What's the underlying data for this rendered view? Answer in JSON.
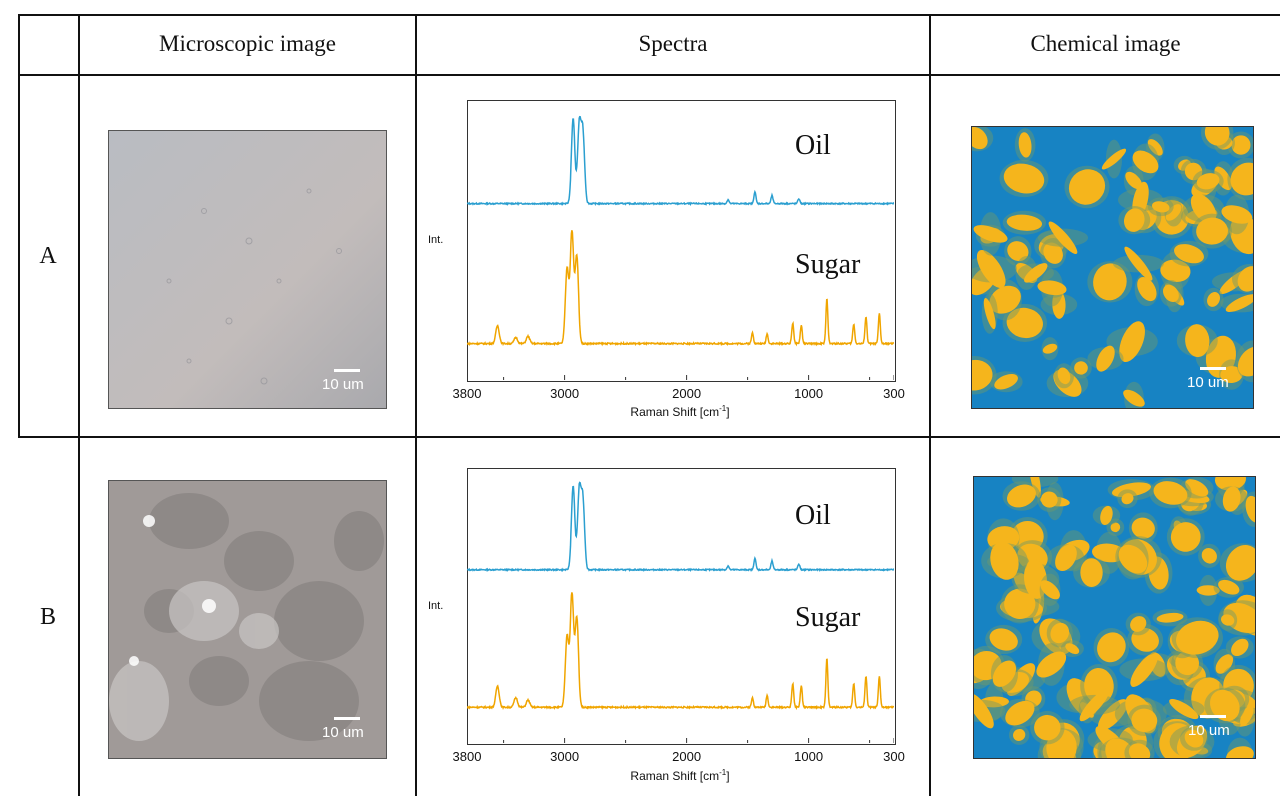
{
  "table": {
    "headers": {
      "microscopic": "Microscopic image",
      "spectra": "Spectra",
      "chemical": "Chemical image"
    },
    "rows": [
      {
        "label": "A",
        "scale_bar": "10 um"
      },
      {
        "label": "B",
        "scale_bar": "10 um"
      }
    ]
  },
  "colors": {
    "oil": "#2b9fd0",
    "sugar": "#f0a500",
    "chem_background": "#1783c3",
    "chem_particle": "#f5b51c"
  },
  "chart_data": [
    {
      "type": "line",
      "panel": "A",
      "ylabel": "Int.",
      "xlabel": "Raman Shift [cm-1]",
      "xlim": [
        3800,
        300
      ],
      "x_ticks": [
        3800,
        3000,
        2000,
        1000,
        300
      ],
      "series": [
        {
          "name": "Oil",
          "color": "#2b9fd0",
          "peaks": [
            [
              2930,
              0.85
            ],
            [
              2880,
              0.78
            ],
            [
              2850,
              0.7
            ],
            [
              1440,
              0.12
            ],
            [
              1300,
              0.08
            ],
            [
              1660,
              0.04
            ],
            [
              1080,
              0.05
            ]
          ]
        },
        {
          "name": "Sugar",
          "color": "#f0a500",
          "peaks": [
            [
              3550,
              0.15
            ],
            [
              3400,
              0.05
            ],
            [
              3300,
              0.06
            ],
            [
              2980,
              0.62
            ],
            [
              2940,
              0.92
            ],
            [
              2900,
              0.72
            ],
            [
              1460,
              0.09
            ],
            [
              1340,
              0.08
            ],
            [
              1130,
              0.17
            ],
            [
              1060,
              0.15
            ],
            [
              850,
              0.38
            ],
            [
              630,
              0.16
            ],
            [
              530,
              0.22
            ],
            [
              420,
              0.25
            ]
          ]
        }
      ]
    },
    {
      "type": "line",
      "panel": "B",
      "ylabel": "Int.",
      "xlabel": "Raman Shift [cm-1]",
      "xlim": [
        3800,
        300
      ],
      "x_ticks": [
        3800,
        3000,
        2000,
        1000,
        300
      ],
      "series": [
        {
          "name": "Oil",
          "color": "#2b9fd0",
          "peaks": [
            [
              2930,
              0.85
            ],
            [
              2880,
              0.8
            ],
            [
              2850,
              0.7
            ],
            [
              1440,
              0.12
            ],
            [
              1300,
              0.09
            ],
            [
              1660,
              0.04
            ],
            [
              1080,
              0.06
            ]
          ]
        },
        {
          "name": "Sugar",
          "color": "#f0a500",
          "peaks": [
            [
              3550,
              0.18
            ],
            [
              3400,
              0.08
            ],
            [
              3300,
              0.06
            ],
            [
              2980,
              0.6
            ],
            [
              2940,
              0.95
            ],
            [
              2900,
              0.75
            ],
            [
              1460,
              0.08
            ],
            [
              1340,
              0.1
            ],
            [
              1130,
              0.2
            ],
            [
              1060,
              0.18
            ],
            [
              850,
              0.42
            ],
            [
              630,
              0.2
            ],
            [
              530,
              0.26
            ],
            [
              420,
              0.26
            ]
          ]
        }
      ]
    }
  ]
}
